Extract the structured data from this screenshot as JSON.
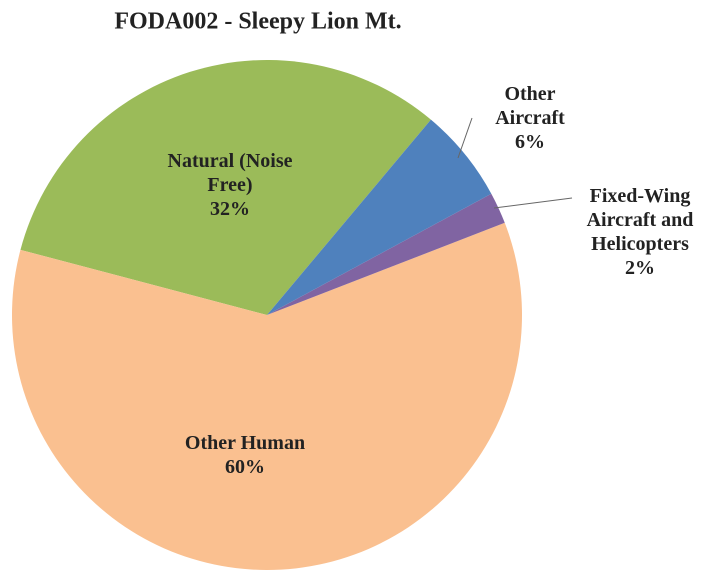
{
  "chart_data": {
    "type": "pie",
    "title": "FODA002 - Sleepy Lion Mt.",
    "categories": [
      "Other Aircraft",
      "Fixed-Wing Aircraft and Helicopters",
      "Other Human",
      "Natural (Noise Free)"
    ],
    "values": [
      6,
      2,
      60,
      32
    ],
    "value_labels": [
      "6%",
      "2%",
      "60%",
      "32%"
    ],
    "colors": [
      "#4f81bd",
      "#8064a2",
      "#fac090",
      "#9bbb59"
    ]
  }
}
